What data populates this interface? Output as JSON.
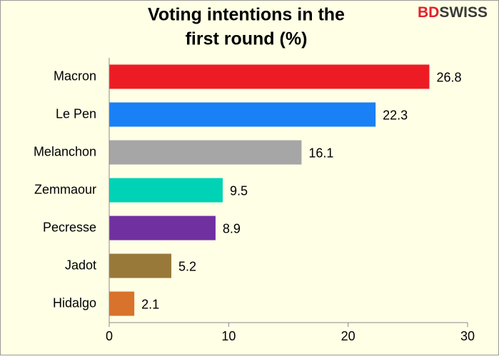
{
  "chart_data": {
    "type": "barh",
    "title": [
      "Voting intentions in the",
      "first round (%)"
    ],
    "logo": [
      "BD",
      "SWISS"
    ],
    "categories": [
      "Macron",
      "Le Pen",
      "Melanchon",
      "Zemmaour",
      "Pecresse",
      "Jadot",
      "Hidalgo"
    ],
    "values": [
      26.8,
      22.3,
      16.1,
      9.5,
      8.9,
      5.2,
      2.1
    ],
    "colors": [
      "#ed1c24",
      "#1a80f5",
      "#a6a6a6",
      "#00d3b5",
      "#7030a0",
      "#98793a",
      "#d9722a"
    ],
    "xlim": [
      0,
      30
    ],
    "xticks": [
      0,
      10,
      20,
      30
    ]
  }
}
